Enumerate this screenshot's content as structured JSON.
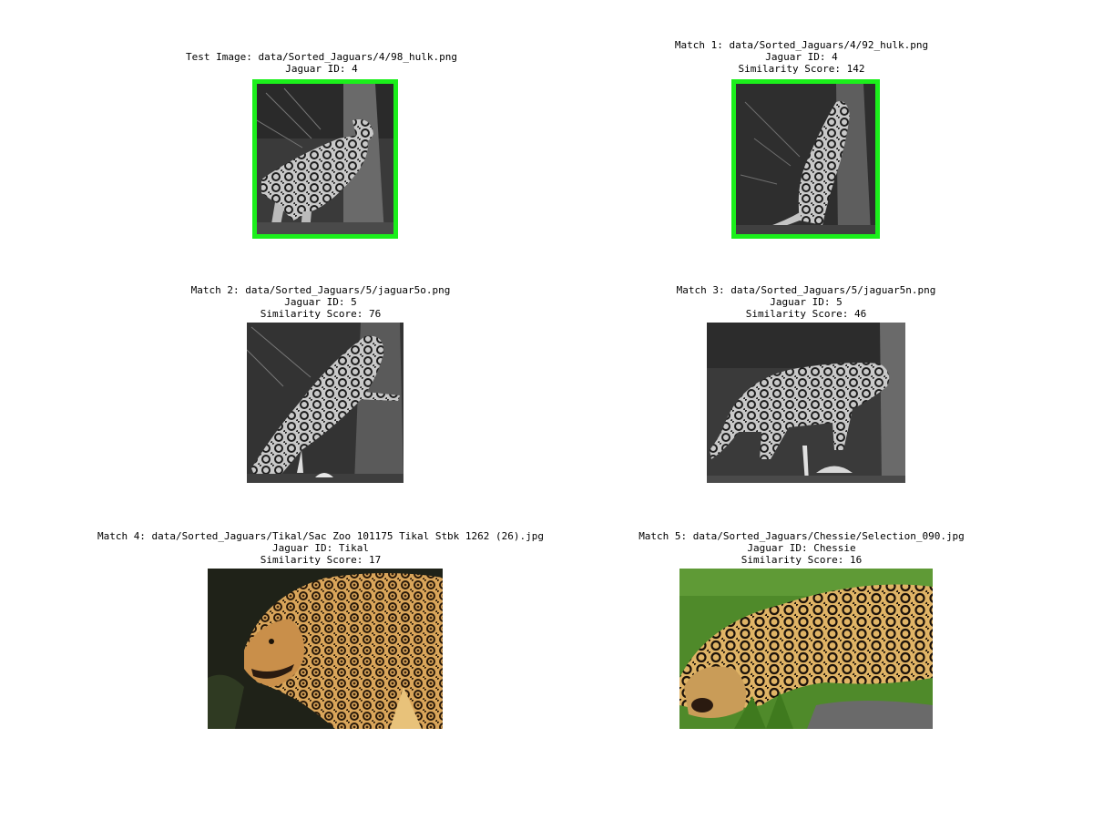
{
  "colors": {
    "match_border": "#1bef1b",
    "background": "#ffffff"
  },
  "panels": [
    {
      "lines": [
        "Test Image: data/Sorted_Jaguars/4/98_hulk.png",
        "Jaguar ID: 4"
      ],
      "image": "grayscale night camera-trap jaguar beside tree",
      "highlighted": true
    },
    {
      "lines": [
        "Match 1: data/Sorted_Jaguars/4/92_hulk.png",
        "Jaguar ID: 4",
        "Similarity Score: 142"
      ],
      "image": "grayscale night camera-trap jaguar climbing tree",
      "highlighted": true
    },
    {
      "lines": [
        "Match 2: data/Sorted_Jaguars/5/jaguar5o.png",
        "Jaguar ID: 5",
        "Similarity Score: 76"
      ],
      "image": "grayscale night camera-trap jaguar rearing on tree",
      "highlighted": false
    },
    {
      "lines": [
        "Match 3: data/Sorted_Jaguars/5/jaguar5n.png",
        "Jaguar ID: 5",
        "Similarity Score: 46"
      ],
      "image": "grayscale night camera-trap jaguar walking",
      "highlighted": false
    },
    {
      "lines": [
        "Match 4: data/Sorted_Jaguars/Tikal/Sac Zoo 101175 Tikal Stbk 1262 (26).jpg",
        "Jaguar ID: Tikal",
        "Similarity Score: 17"
      ],
      "image": "color photo of jaguar head and shoulders",
      "highlighted": false
    },
    {
      "lines": [
        "Match 5: data/Sorted_Jaguars/Chessie/Selection_090.jpg",
        "Jaguar ID: Chessie",
        "Similarity Score: 16"
      ],
      "image": "color photo of jaguar lying on grass",
      "highlighted": false
    }
  ]
}
